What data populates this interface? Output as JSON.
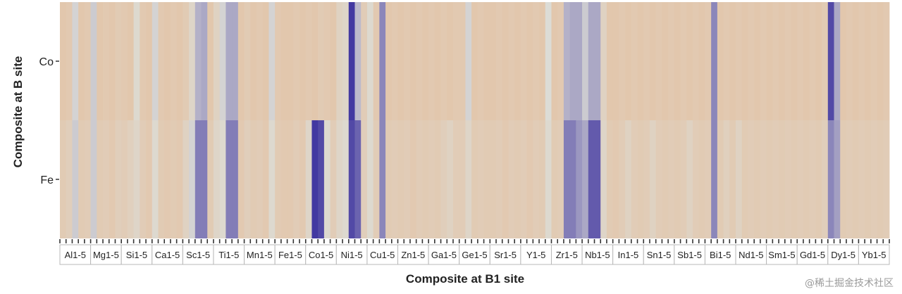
{
  "chart_data": {
    "type": "heatmap",
    "xlabel": "Composite at B1 site",
    "ylabel": "Composite at B site",
    "rows": [
      "Co",
      "Fe"
    ],
    "categories": [
      "Al1-5",
      "Mg1-5",
      "Si1-5",
      "Ca1-5",
      "Sc1-5",
      "Ti1-5",
      "Mn1-5",
      "Fe1-5",
      "Co1-5",
      "Ni1-5",
      "Cu1-5",
      "Zn1-5",
      "Ga1-5",
      "Ge1-5",
      "Sr1-5",
      "Y1-5",
      "Zr1-5",
      "Nb1-5",
      "In1-5",
      "Sn1-5",
      "Sb1-5",
      "Bi1-5",
      "Nd1-5",
      "Sm1-5",
      "Gd1-5",
      "Dy1-5",
      "Yb1-5"
    ],
    "subcolumns_per_category": 5,
    "colors": {
      "low": "#e6b992",
      "mid": "#dcdcd6",
      "high": "#3a2f9e"
    },
    "value_range": [
      -1,
      1
    ],
    "values": [
      [
        [
          -0.6,
          -0.55,
          0.05,
          -0.6,
          -0.55
        ],
        [
          0.1,
          -0.6,
          -0.55,
          -0.6,
          -0.5
        ],
        [
          -0.55,
          -0.6,
          -0.1,
          -0.55,
          -0.6
        ],
        [
          0.05,
          -0.55,
          -0.6,
          -0.55,
          -0.6
        ],
        [
          -0.5,
          -0.2,
          0.25,
          0.3,
          -0.6
        ],
        [
          -0.3,
          0.05,
          0.3,
          0.3,
          -0.6
        ],
        [
          -0.5,
          -0.6,
          -0.55,
          -0.6,
          0.05
        ],
        [
          -0.55,
          -0.6,
          -0.6,
          -0.55,
          -0.6
        ],
        [
          -0.55,
          -0.6,
          -0.5,
          -0.55,
          -0.6
        ],
        [
          -0.3,
          -0.2,
          0.95,
          0.2,
          -0.45
        ],
        [
          -0.1,
          -0.55,
          0.5,
          -0.6,
          -0.55
        ],
        [
          -0.6,
          -0.55,
          -0.6,
          -0.55,
          -0.6
        ],
        [
          -0.55,
          -0.6,
          -0.55,
          -0.6,
          -0.55
        ],
        [
          -0.55,
          0.05,
          -0.6,
          -0.55,
          -0.6
        ],
        [
          -0.6,
          -0.55,
          -0.6,
          -0.55,
          -0.6
        ],
        [
          -0.55,
          -0.6,
          -0.55,
          -0.6,
          0.0
        ],
        [
          -0.6,
          -0.55,
          0.25,
          0.3,
          0.3
        ],
        [
          0.1,
          0.3,
          0.3,
          -0.3,
          -0.6
        ],
        [
          -0.6,
          -0.55,
          -0.6,
          -0.55,
          -0.6
        ],
        [
          -0.55,
          -0.6,
          -0.55,
          -0.6,
          -0.55
        ],
        [
          -0.6,
          -0.55,
          -0.6,
          -0.55,
          -0.6
        ],
        [
          -0.55,
          0.5,
          -0.6,
          -0.55,
          -0.6
        ],
        [
          -0.55,
          -0.6,
          -0.55,
          -0.6,
          -0.55
        ],
        [
          -0.6,
          -0.55,
          -0.6,
          -0.55,
          -0.6
        ],
        [
          -0.55,
          -0.6,
          -0.55,
          -0.6,
          -0.5
        ],
        [
          0.85,
          0.3,
          -0.6,
          -0.55,
          -0.6
        ],
        [
          -0.55,
          -0.6,
          -0.55,
          -0.6,
          -0.55
        ]
      ],
      [
        [
          -0.5,
          -0.4,
          0.1,
          -0.5,
          -0.45
        ],
        [
          0.1,
          -0.5,
          -0.45,
          -0.55,
          -0.4
        ],
        [
          -0.45,
          -0.35,
          -0.2,
          -0.45,
          -0.55
        ],
        [
          -0.1,
          -0.5,
          -0.55,
          -0.5,
          -0.55
        ],
        [
          -0.3,
          0.05,
          0.55,
          0.55,
          -0.5
        ],
        [
          -0.2,
          -0.1,
          0.55,
          0.55,
          -0.55
        ],
        [
          -0.4,
          -0.5,
          -0.45,
          -0.55,
          -0.1
        ],
        [
          -0.5,
          -0.55,
          -0.55,
          -0.45,
          -0.55
        ],
        [
          -0.2,
          0.95,
          0.85,
          -0.1,
          -0.45
        ],
        [
          -0.2,
          -0.1,
          0.85,
          0.7,
          -0.4
        ],
        [
          -0.1,
          -0.45,
          0.5,
          -0.5,
          -0.45
        ],
        [
          -0.5,
          -0.45,
          -0.55,
          -0.45,
          -0.5
        ],
        [
          -0.45,
          -0.5,
          -0.4,
          -0.3,
          -0.45
        ],
        [
          -0.45,
          -0.2,
          -0.5,
          -0.45,
          -0.5
        ],
        [
          -0.5,
          -0.45,
          -0.55,
          -0.45,
          -0.5
        ],
        [
          -0.45,
          -0.55,
          -0.45,
          -0.5,
          -0.1
        ],
        [
          -0.5,
          -0.45,
          0.55,
          0.55,
          0.4
        ],
        [
          0.3,
          0.75,
          0.75,
          -0.2,
          -0.5
        ],
        [
          -0.55,
          -0.45,
          -0.3,
          -0.45,
          -0.5
        ],
        [
          -0.45,
          -0.3,
          -0.45,
          -0.5,
          -0.45
        ],
        [
          -0.5,
          -0.45,
          -0.3,
          -0.45,
          -0.5
        ],
        [
          -0.45,
          0.5,
          -0.5,
          -0.35,
          -0.5
        ],
        [
          -0.3,
          -0.5,
          -0.45,
          -0.5,
          -0.45
        ],
        [
          -0.5,
          -0.45,
          -0.5,
          -0.45,
          -0.5
        ],
        [
          -0.45,
          -0.5,
          -0.45,
          -0.5,
          -0.4
        ],
        [
          0.5,
          0.35,
          -0.5,
          -0.45,
          -0.5
        ],
        [
          -0.45,
          -0.5,
          -0.45,
          -0.5,
          -0.45
        ]
      ]
    ]
  },
  "watermark": "@稀土掘金技术社区"
}
